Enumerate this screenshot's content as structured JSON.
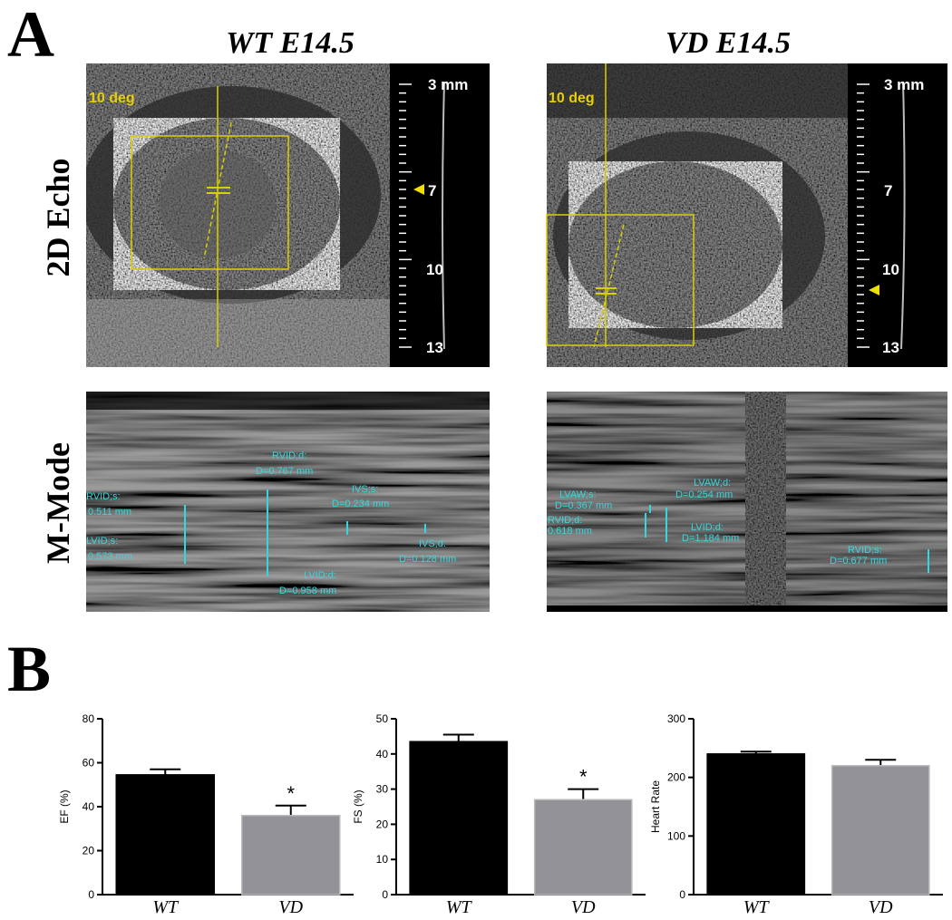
{
  "panel_a": {
    "label": "A",
    "columns": [
      "WT E14.5",
      "VD E14.5"
    ],
    "rows": [
      "2D Echo",
      "M-Mode"
    ],
    "wt_echo": {
      "angle": "10 deg",
      "scale": [
        "3 mm",
        "7",
        "10",
        "13"
      ]
    },
    "vd_echo": {
      "angle": "10 deg",
      "scale": [
        "3 mm",
        "7",
        "10",
        "13"
      ]
    },
    "wt_mmode": {
      "labels": [
        "RVID;d:",
        "D=0.767 mm",
        "RVID;s:",
        "0.511 mm",
        "IVS;s:",
        "D=0.234 mm",
        "LVID;s:",
        "0.573 mm",
        "IVS;d:",
        "D=0.128 mm",
        "LVID;d:",
        "D=0.958 mm"
      ]
    },
    "vd_mmode": {
      "labels": [
        "LVAW;d:",
        "D=0.254 mm",
        "LVAW;s:",
        "D=0.367 mm",
        "RVID;d:",
        "0.618 mm",
        "LVID;d:",
        "D=1.184 mm",
        "RVID;s:",
        "D=0.677 mm"
      ]
    }
  },
  "panel_b": {
    "label": "B"
  },
  "chart_data": [
    {
      "type": "bar",
      "ylabel": "EF (%)",
      "categories": [
        "WT",
        "VD"
      ],
      "values": [
        54.5,
        36
      ],
      "errors": [
        2.5,
        4.5
      ],
      "colors": [
        "#000000",
        "#929297"
      ],
      "significance": [
        null,
        "*"
      ],
      "ylim": [
        0,
        80
      ],
      "yticks": [
        0,
        20,
        40,
        60,
        80
      ]
    },
    {
      "type": "bar",
      "ylabel": "FS (%)",
      "categories": [
        "WT",
        "VD"
      ],
      "values": [
        43.5,
        27
      ],
      "errors": [
        2,
        3
      ],
      "colors": [
        "#000000",
        "#929297"
      ],
      "significance": [
        null,
        "*"
      ],
      "ylim": [
        0,
        50
      ],
      "yticks": [
        0,
        10,
        20,
        30,
        40,
        50
      ]
    },
    {
      "type": "bar",
      "ylabel": "Heart Rate",
      "categories": [
        "WT",
        "VD"
      ],
      "values": [
        240,
        220
      ],
      "errors": [
        4,
        10
      ],
      "colors": [
        "#000000",
        "#929297"
      ],
      "significance": [
        null,
        null
      ],
      "ylim": [
        0,
        300
      ],
      "yticks": [
        0,
        100,
        200,
        300
      ]
    }
  ]
}
